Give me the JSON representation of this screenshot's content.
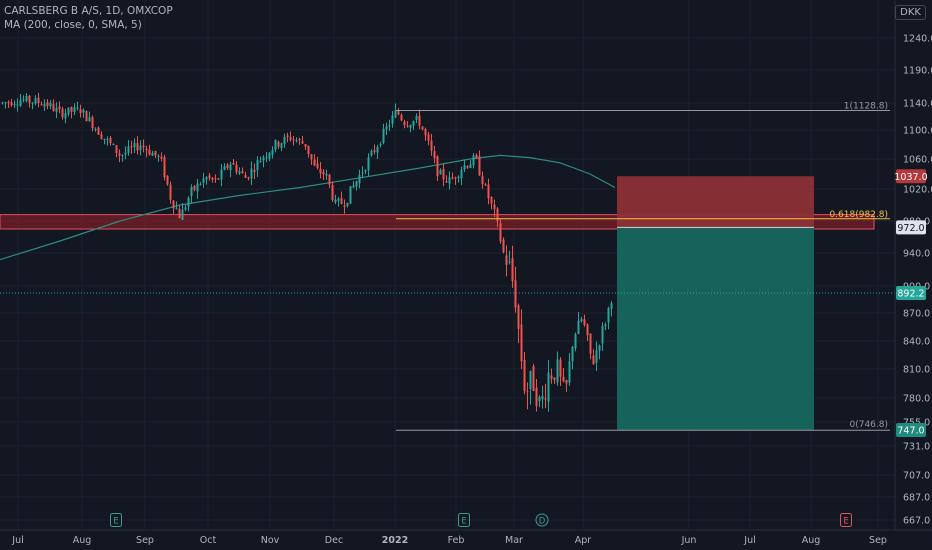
{
  "header": {
    "symbol_line": "CARLSBERG B A/S, 1D, OMXCOP",
    "indicator_line": "MA (200, close, 0, SMA, 5)",
    "currency": "DKK"
  },
  "colors": {
    "background": "#131722",
    "grid": "#1e222d",
    "up": "#26a69a",
    "down": "#ef5350",
    "ma": "#2e8b80",
    "zone_fill": "#7a1f2a",
    "zone_border": "#e04f5f",
    "stop_fill": "#8b3037",
    "target_fill": "#15675e",
    "fib_line": "#9598a1",
    "fib_618": "#f0c040"
  },
  "y_axis": {
    "labels": [
      "1240.0",
      "1190.0",
      "1140.0",
      "1100.0",
      "1060.0",
      "1020.0",
      "980.0",
      "940.0",
      "900.0",
      "870.0",
      "840.0",
      "810.0",
      "780.0",
      "755.0",
      "731.0",
      "707.0",
      "687.0",
      "667.0"
    ],
    "range": [
      660,
      1270
    ]
  },
  "x_axis": {
    "labels": [
      "Jul",
      "Aug",
      "Sep",
      "Oct",
      "Nov",
      "Dec",
      "2022",
      "Feb",
      "Mar",
      "Apr",
      "Jun",
      "Jul",
      "Aug",
      "Sep"
    ]
  },
  "price_tags": [
    {
      "value": 1037.0,
      "text": "1037.0",
      "kind": "stop"
    },
    {
      "value": 972.0,
      "text": "972.0",
      "kind": "entry"
    },
    {
      "value": 892.2,
      "text": "892.2",
      "kind": "last"
    },
    {
      "value": 747.0,
      "text": "747.0",
      "kind": "target"
    }
  ],
  "fib": {
    "top_label": "1(1128.8)",
    "mid_label": "0.618(982.8)",
    "bottom_label": "0(746.8)",
    "top": 1128.8,
    "mid": 982.8,
    "bottom": 746.8
  },
  "event_markers": [
    {
      "letter": "E",
      "kind": "earnings"
    },
    {
      "letter": "E",
      "kind": "earnings"
    },
    {
      "letter": "D",
      "kind": "dividend"
    },
    {
      "letter": "E",
      "kind": "earnings-upcoming"
    }
  ],
  "chart_data": {
    "type": "candlestick",
    "title": "CARLSBERG B A/S, 1D, OMXCOP",
    "ylabel": "DKK",
    "ylim": [
      660,
      1270
    ],
    "x": [
      "2021-07",
      "2021-08",
      "2021-09",
      "2021-10",
      "2021-11",
      "2021-12",
      "2022-01",
      "2022-02",
      "2022-03",
      "2022-04"
    ],
    "series": [
      {
        "name": "Close",
        "values": [
          1140,
          1125,
          1085,
          1040,
          1070,
          1035,
          1120,
          1055,
          770,
          892.2
        ]
      },
      {
        "name": "MA (200, close, 0, SMA, 5)",
        "values": [
          930,
          985,
          1010,
          1025,
          1040,
          1055,
          1065,
          1068,
          1055,
          1015
        ]
      }
    ],
    "resistance_zone": [
      970,
      988
    ],
    "position": {
      "stop": 1037.0,
      "entry": 972.0,
      "target": 747.0
    }
  }
}
